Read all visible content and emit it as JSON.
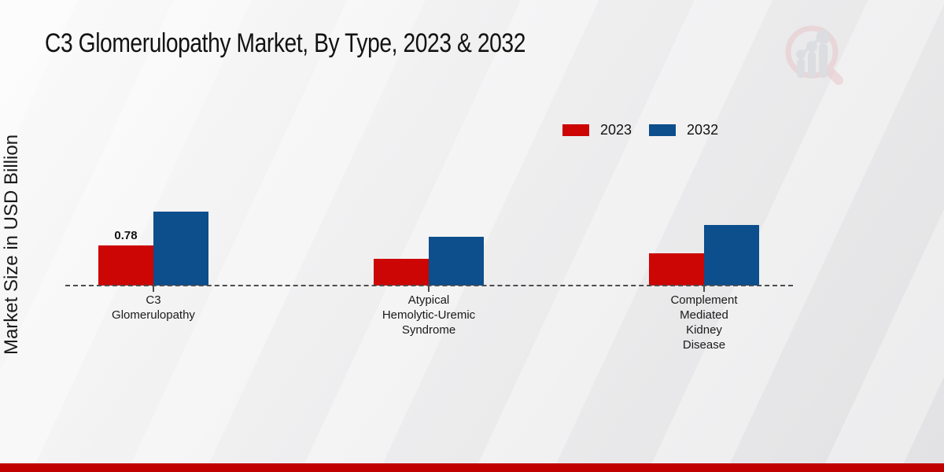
{
  "title": "C3 Glomerulopathy Market, By Type, 2023 & 2032",
  "y_axis_label": "Market Size in USD Billion",
  "legend": {
    "items": [
      {
        "label": "2023",
        "color": "#cc0505"
      },
      {
        "label": "2032",
        "color": "#0d4e8c"
      }
    ]
  },
  "chart_data": {
    "type": "bar",
    "title": "C3 Glomerulopathy Market, By Type, 2023 & 2032",
    "xlabel": "",
    "ylabel": "Market Size in USD Billion",
    "categories": [
      "C3 Glomerulopathy",
      "Atypical Hemolytic-Uremic Syndrome",
      "Complement Mediated Kidney Disease"
    ],
    "category_label_lines": [
      [
        "C3",
        "Glomerulopathy"
      ],
      [
        "Atypical",
        "Hemolytic-Uremic",
        "Syndrome"
      ],
      [
        "Complement",
        "Mediated",
        "Kidney",
        "Disease"
      ]
    ],
    "series": [
      {
        "name": "2023",
        "color": "#cc0505",
        "values": [
          0.78,
          0.52,
          0.63
        ]
      },
      {
        "name": "2032",
        "color": "#0d4e8c",
        "values": [
          1.43,
          0.95,
          1.18
        ]
      }
    ],
    "data_labels": [
      {
        "series_index": 0,
        "category_index": 0,
        "text": "0.78"
      }
    ],
    "baseline_value": 0,
    "ylim": [
      0,
      1.6
    ],
    "grid": false,
    "legend_position": "top-right"
  },
  "branding": {
    "logo_name": "market-research-magnifier-logo",
    "logo_circle_color": "#e2b6ba",
    "logo_bar_color": "#c3c6cc",
    "footer_bar_color": "#c00000"
  }
}
